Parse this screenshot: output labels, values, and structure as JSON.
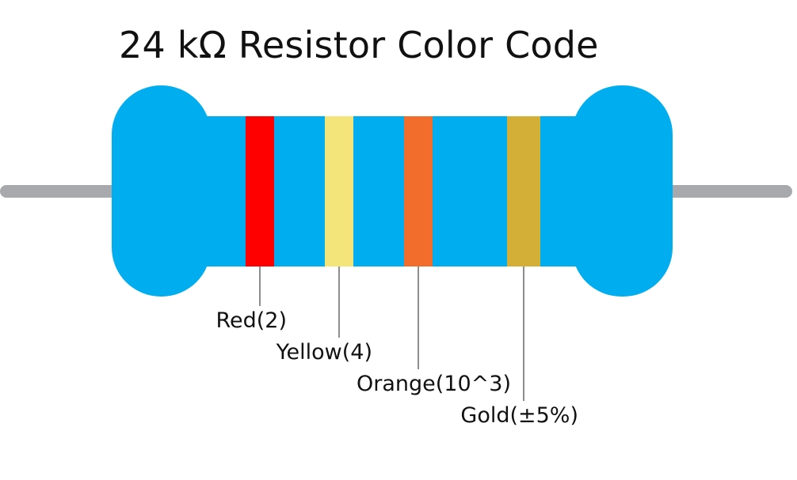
{
  "title": "24 kΩ Resistor Color Code",
  "colors": {
    "body": "#00AEEF",
    "lead": "#A7A9AC",
    "leader_line": "#444444"
  },
  "bands": [
    {
      "name": "Red",
      "label": "Red(2)",
      "color": "#FF0000"
    },
    {
      "name": "Yellow",
      "label": "Yellow(4)",
      "color": "#F3E57A"
    },
    {
      "name": "Orange",
      "label": "Orange(10^3)",
      "color": "#F26C2C"
    },
    {
      "name": "Gold",
      "label": "Gold(±5%)",
      "color": "#D4AF37"
    }
  ]
}
